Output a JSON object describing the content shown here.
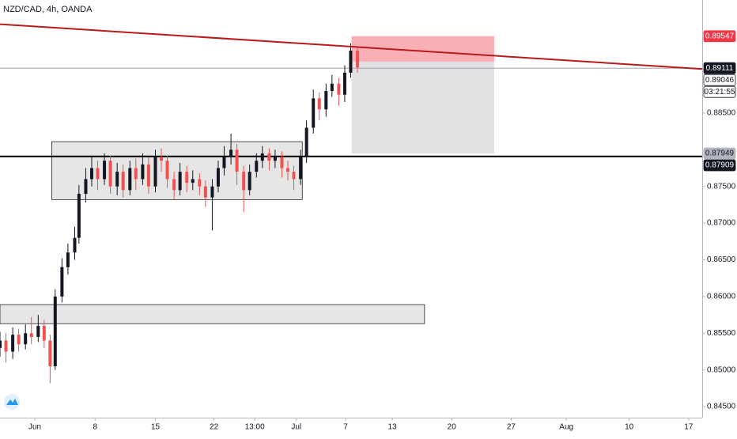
{
  "chart_data": {
    "type": "candlestick",
    "title": "NZD/CAD, 4h, OANDA",
    "x": [
      -4.1,
      -3.4,
      -2.6,
      -1.9,
      -1.1,
      -0.4,
      0.4,
      1.1,
      1.8,
      2.4,
      3.2,
      3.9,
      4.7,
      5.2,
      6.0,
      6.7,
      7.4,
      8.2,
      8.9,
      9.7,
      10.4,
      11.2,
      11.9,
      12.7,
      13.4,
      14.2,
      14.9,
      15.6,
      16.4,
      17.1,
      17.9,
      18.6,
      19.4,
      20.1,
      20.9,
      21.6,
      22.3,
      23.1,
      23.8,
      24.6,
      25.3,
      26.1,
      26.8,
      27.6,
      28.3,
      29.1,
      29.8,
      30.5,
      31.3,
      32.0,
      32.8,
      33.5,
      34.3,
      35.0,
      35.8,
      36.5,
      37.2,
      38.0
    ],
    "open": [
      0.853,
      0.854,
      0.8525,
      0.8548,
      0.8535,
      0.855,
      0.8545,
      0.856,
      0.854,
      0.8505,
      0.86,
      0.864,
      0.866,
      0.868,
      0.874,
      0.876,
      0.8775,
      0.876,
      0.8785,
      0.875,
      0.877,
      0.8745,
      0.8775,
      0.876,
      0.878,
      0.875,
      0.879,
      0.8785,
      0.876,
      0.8745,
      0.877,
      0.8755,
      0.876,
      0.875,
      0.8735,
      0.875,
      0.8775,
      0.879,
      0.88,
      0.877,
      0.8745,
      0.877,
      0.8785,
      0.8795,
      0.8785,
      0.879,
      0.8775,
      0.877,
      0.876,
      0.879,
      0.883,
      0.887,
      0.8855,
      0.888,
      0.889,
      0.8875,
      0.8905,
      0.8935
    ],
    "high": [
      0.8552,
      0.855,
      0.8558,
      0.8556,
      0.8562,
      0.8572,
      0.8575,
      0.8568,
      0.8548,
      0.861,
      0.8652,
      0.8672,
      0.8695,
      0.8752,
      0.8775,
      0.8792,
      0.8785,
      0.8795,
      0.8792,
      0.8782,
      0.878,
      0.8785,
      0.8788,
      0.8795,
      0.879,
      0.88,
      0.8802,
      0.8792,
      0.877,
      0.8782,
      0.8778,
      0.8772,
      0.8768,
      0.8758,
      0.876,
      0.8785,
      0.8805,
      0.8822,
      0.8808,
      0.8778,
      0.878,
      0.8795,
      0.8805,
      0.8802,
      0.88,
      0.8798,
      0.8785,
      0.8778,
      0.88,
      0.884,
      0.8882,
      0.8878,
      0.889,
      0.8902,
      0.8898,
      0.8915,
      0.8945,
      0.894
    ],
    "low": [
      0.8518,
      0.851,
      0.8515,
      0.8525,
      0.8528,
      0.8535,
      0.8538,
      0.853,
      0.8482,
      0.85,
      0.8592,
      0.863,
      0.865,
      0.8672,
      0.8728,
      0.875,
      0.8745,
      0.8752,
      0.874,
      0.8738,
      0.8735,
      0.8738,
      0.8745,
      0.8752,
      0.874,
      0.8742,
      0.877,
      0.8748,
      0.8732,
      0.8738,
      0.8742,
      0.8745,
      0.8738,
      0.8722,
      0.869,
      0.8742,
      0.8765,
      0.878,
      0.8752,
      0.8715,
      0.8738,
      0.8762,
      0.8775,
      0.8772,
      0.8775,
      0.8762,
      0.8758,
      0.8745,
      0.8752,
      0.8782,
      0.8822,
      0.884,
      0.8845,
      0.8872,
      0.886,
      0.8865,
      0.8898,
      0.8905
    ],
    "close": [
      0.854,
      0.8525,
      0.8548,
      0.8535,
      0.855,
      0.8545,
      0.856,
      0.854,
      0.8505,
      0.86,
      0.864,
      0.866,
      0.868,
      0.874,
      0.876,
      0.8775,
      0.876,
      0.8785,
      0.875,
      0.877,
      0.8745,
      0.8775,
      0.876,
      0.878,
      0.875,
      0.879,
      0.8785,
      0.876,
      0.8745,
      0.877,
      0.8755,
      0.876,
      0.875,
      0.8735,
      0.875,
      0.8775,
      0.879,
      0.88,
      0.877,
      0.8745,
      0.877,
      0.8785,
      0.8795,
      0.8785,
      0.879,
      0.8775,
      0.877,
      0.876,
      0.879,
      0.883,
      0.887,
      0.8855,
      0.888,
      0.889,
      0.8875,
      0.8905,
      0.8935,
      0.8912
    ],
    "up_color": "#131722",
    "down_color": "#ef5350",
    "xlim": [
      -4.1,
      78.6
    ],
    "xticks": [
      {
        "value": 0,
        "label": "Jun"
      },
      {
        "value": 7.1,
        "label": "8"
      },
      {
        "value": 14.2,
        "label": "15"
      },
      {
        "value": 21.1,
        "label": "22"
      },
      {
        "value": 25.9,
        "label": "13:00"
      },
      {
        "value": 30.8,
        "label": "Jul"
      },
      {
        "value": 36.6,
        "label": "7"
      },
      {
        "value": 42.1,
        "label": "13"
      },
      {
        "value": 49.1,
        "label": "20"
      },
      {
        "value": 56.1,
        "label": "27"
      },
      {
        "value": 62.6,
        "label": "Aug"
      },
      {
        "value": 70.0,
        "label": "10"
      },
      {
        "value": 77.0,
        "label": "17"
      }
    ],
    "ylim": [
      0.8435,
      0.9004
    ],
    "yticks": [
      {
        "value": 0.845,
        "label": "0.84500"
      },
      {
        "value": 0.85,
        "label": "0.85000"
      },
      {
        "value": 0.855,
        "label": "0.85500"
      },
      {
        "value": 0.86,
        "label": "0.86000"
      },
      {
        "value": 0.865,
        "label": "0.86500"
      },
      {
        "value": 0.87,
        "label": "0.87000"
      },
      {
        "value": 0.875,
        "label": "0.87500"
      },
      {
        "value": 0.885,
        "label": "0.88500"
      }
    ],
    "trendline": {
      "x": [
        -4.1,
        78.6
      ],
      "y": [
        0.8971,
        0.891
      ],
      "color": "#b71c1c"
    },
    "zones": [
      {
        "x": [
          2.0,
          31.5
        ],
        "y": [
          0.8811,
          0.8732
        ]
      },
      {
        "x": [
          -4.1,
          45.9
        ],
        "y": [
          0.8589,
          0.8563
        ]
      }
    ],
    "position": {
      "x": [
        37.3,
        54.1
      ],
      "entry": 0.892,
      "stop": 0.89547,
      "target": 0.87949
    },
    "price_labels": [
      {
        "value": 0.89547,
        "label": "0.89547",
        "bg": "#f23645",
        "fg": "#ffffff"
      },
      {
        "value": 0.89111,
        "label": "0.89111",
        "bg": "#131722",
        "fg": "#ffffff",
        "line": "#9598a1"
      },
      {
        "value": 0.89046,
        "label": "0.89046",
        "bg": "#ffffff",
        "fg": "#131722"
      },
      {
        "value": 0.87949,
        "label": "0.87949",
        "bg": "#b2b5be",
        "fg": "#131722"
      },
      {
        "value": 0.87909,
        "label": "0.87909",
        "bg": "#131722",
        "fg": "#ffffff",
        "line": "#000000"
      }
    ],
    "countdown": "03:21:55"
  }
}
